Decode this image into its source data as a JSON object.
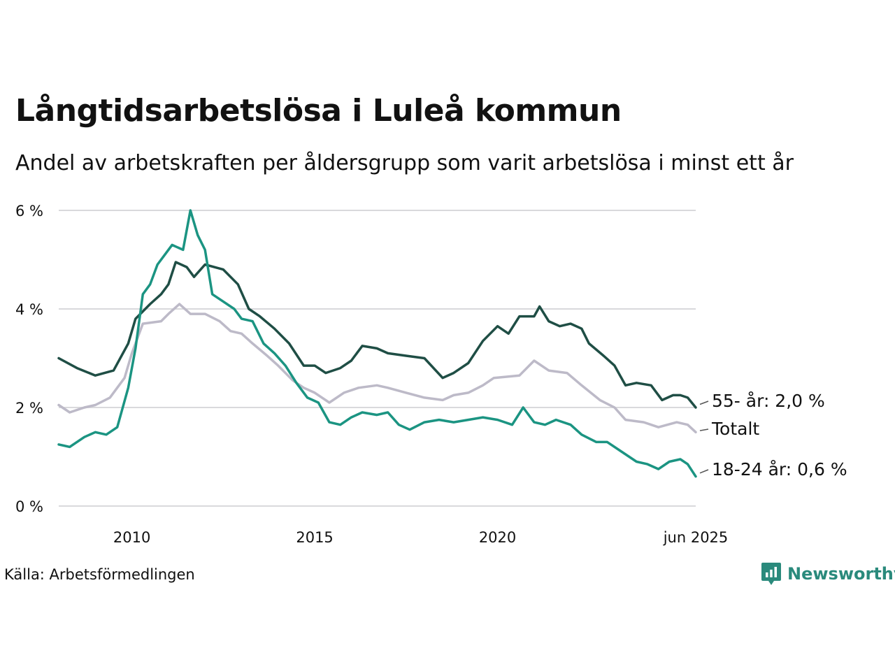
{
  "title": "Långtidsarbetslösa i Luleå kommun",
  "subtitle": "Andel av arbetskraften per åldersgrupp som varit arbetslösa i minst ett år",
  "source": "Källa: Arbetsförmedlingen",
  "brand": {
    "name": "Newsworthy",
    "icon": "newsworthy-logo-icon"
  },
  "colors": {
    "older": "#1f4e45",
    "total": "#bdbac8",
    "young": "#1b9482",
    "grid": "#d9d9dc",
    "brand": "#2a8a7c"
  },
  "chart_data": {
    "type": "line",
    "title": "Långtidsarbetslösa i Luleå kommun",
    "subtitle": "Andel av arbetskraften per åldersgrupp som varit arbetslösa i minst ett år",
    "xlabel": "",
    "ylabel": "",
    "xlim": [
      2008.0,
      2025.42
    ],
    "ylim": [
      0,
      6
    ],
    "grid": true,
    "x_ticks": [
      {
        "value": 2010,
        "label": "2010"
      },
      {
        "value": 2015,
        "label": "2015"
      },
      {
        "value": 2020,
        "label": "2020"
      },
      {
        "value": 2025.42,
        "label": "jun 2025"
      }
    ],
    "y_ticks": [
      {
        "value": 0,
        "label": "0 %"
      },
      {
        "value": 2,
        "label": "2 %"
      },
      {
        "value": 4,
        "label": "4 %"
      },
      {
        "value": 6,
        "label": "6 %"
      }
    ],
    "series": [
      {
        "name": "55- år",
        "end_label": "55- år: 2,0 %",
        "color": "#1f4e45",
        "points": [
          [
            2008.0,
            3.0
          ],
          [
            2008.5,
            2.8
          ],
          [
            2009.0,
            2.65
          ],
          [
            2009.5,
            2.75
          ],
          [
            2009.9,
            3.3
          ],
          [
            2010.1,
            3.8
          ],
          [
            2010.5,
            4.1
          ],
          [
            2010.8,
            4.3
          ],
          [
            2011.0,
            4.5
          ],
          [
            2011.2,
            4.95
          ],
          [
            2011.5,
            4.85
          ],
          [
            2011.7,
            4.65
          ],
          [
            2012.0,
            4.9
          ],
          [
            2012.5,
            4.8
          ],
          [
            2012.9,
            4.5
          ],
          [
            2013.2,
            4.0
          ],
          [
            2013.5,
            3.85
          ],
          [
            2013.9,
            3.6
          ],
          [
            2014.3,
            3.3
          ],
          [
            2014.7,
            2.85
          ],
          [
            2015.0,
            2.85
          ],
          [
            2015.3,
            2.7
          ],
          [
            2015.7,
            2.8
          ],
          [
            2016.0,
            2.95
          ],
          [
            2016.3,
            3.25
          ],
          [
            2016.7,
            3.2
          ],
          [
            2017.0,
            3.1
          ],
          [
            2017.5,
            3.05
          ],
          [
            2018.0,
            3.0
          ],
          [
            2018.5,
            2.6
          ],
          [
            2018.8,
            2.7
          ],
          [
            2019.2,
            2.9
          ],
          [
            2019.6,
            3.35
          ],
          [
            2020.0,
            3.65
          ],
          [
            2020.3,
            3.5
          ],
          [
            2020.6,
            3.85
          ],
          [
            2021.0,
            3.85
          ],
          [
            2021.15,
            4.05
          ],
          [
            2021.4,
            3.75
          ],
          [
            2021.7,
            3.65
          ],
          [
            2022.0,
            3.7
          ],
          [
            2022.3,
            3.6
          ],
          [
            2022.5,
            3.3
          ],
          [
            2022.9,
            3.05
          ],
          [
            2023.2,
            2.85
          ],
          [
            2023.5,
            2.45
          ],
          [
            2023.8,
            2.5
          ],
          [
            2024.2,
            2.45
          ],
          [
            2024.5,
            2.15
          ],
          [
            2024.8,
            2.25
          ],
          [
            2025.0,
            2.25
          ],
          [
            2025.2,
            2.2
          ],
          [
            2025.42,
            2.0
          ]
        ]
      },
      {
        "name": "Totalt",
        "end_label": "Totalt",
        "color": "#bdbac8",
        "points": [
          [
            2008.0,
            2.05
          ],
          [
            2008.3,
            1.9
          ],
          [
            2008.7,
            2.0
          ],
          [
            2009.0,
            2.05
          ],
          [
            2009.4,
            2.2
          ],
          [
            2009.8,
            2.6
          ],
          [
            2010.0,
            3.1
          ],
          [
            2010.3,
            3.7
          ],
          [
            2010.8,
            3.75
          ],
          [
            2011.0,
            3.9
          ],
          [
            2011.3,
            4.1
          ],
          [
            2011.6,
            3.9
          ],
          [
            2012.0,
            3.9
          ],
          [
            2012.4,
            3.75
          ],
          [
            2012.7,
            3.55
          ],
          [
            2013.0,
            3.5
          ],
          [
            2013.3,
            3.3
          ],
          [
            2013.7,
            3.05
          ],
          [
            2014.0,
            2.85
          ],
          [
            2014.4,
            2.55
          ],
          [
            2014.7,
            2.4
          ],
          [
            2015.0,
            2.3
          ],
          [
            2015.4,
            2.1
          ],
          [
            2015.8,
            2.3
          ],
          [
            2016.2,
            2.4
          ],
          [
            2016.7,
            2.45
          ],
          [
            2017.0,
            2.4
          ],
          [
            2017.5,
            2.3
          ],
          [
            2018.0,
            2.2
          ],
          [
            2018.5,
            2.15
          ],
          [
            2018.8,
            2.25
          ],
          [
            2019.2,
            2.3
          ],
          [
            2019.6,
            2.45
          ],
          [
            2019.9,
            2.6
          ],
          [
            2020.6,
            2.65
          ],
          [
            2021.0,
            2.95
          ],
          [
            2021.4,
            2.75
          ],
          [
            2021.9,
            2.7
          ],
          [
            2022.3,
            2.45
          ],
          [
            2022.8,
            2.15
          ],
          [
            2023.2,
            2.0
          ],
          [
            2023.5,
            1.75
          ],
          [
            2024.0,
            1.7
          ],
          [
            2024.4,
            1.6
          ],
          [
            2024.9,
            1.7
          ],
          [
            2025.2,
            1.65
          ],
          [
            2025.42,
            1.5
          ]
        ]
      },
      {
        "name": "18-24 år",
        "end_label": "18-24 år: 0,6 %",
        "color": "#1b9482",
        "points": [
          [
            2008.0,
            1.25
          ],
          [
            2008.3,
            1.2
          ],
          [
            2008.7,
            1.4
          ],
          [
            2009.0,
            1.5
          ],
          [
            2009.3,
            1.45
          ],
          [
            2009.6,
            1.6
          ],
          [
            2009.9,
            2.4
          ],
          [
            2010.1,
            3.2
          ],
          [
            2010.3,
            4.3
          ],
          [
            2010.5,
            4.5
          ],
          [
            2010.7,
            4.9
          ],
          [
            2010.9,
            5.1
          ],
          [
            2011.1,
            5.3
          ],
          [
            2011.4,
            5.2
          ],
          [
            2011.6,
            6.0
          ],
          [
            2011.8,
            5.5
          ],
          [
            2012.0,
            5.2
          ],
          [
            2012.2,
            4.3
          ],
          [
            2012.5,
            4.15
          ],
          [
            2012.8,
            4.0
          ],
          [
            2013.0,
            3.8
          ],
          [
            2013.3,
            3.75
          ],
          [
            2013.6,
            3.3
          ],
          [
            2013.9,
            3.1
          ],
          [
            2014.2,
            2.85
          ],
          [
            2014.5,
            2.5
          ],
          [
            2014.8,
            2.2
          ],
          [
            2015.1,
            2.1
          ],
          [
            2015.4,
            1.7
          ],
          [
            2015.7,
            1.65
          ],
          [
            2016.0,
            1.8
          ],
          [
            2016.3,
            1.9
          ],
          [
            2016.7,
            1.85
          ],
          [
            2017.0,
            1.9
          ],
          [
            2017.3,
            1.65
          ],
          [
            2017.6,
            1.55
          ],
          [
            2018.0,
            1.7
          ],
          [
            2018.4,
            1.75
          ],
          [
            2018.8,
            1.7
          ],
          [
            2019.2,
            1.75
          ],
          [
            2019.6,
            1.8
          ],
          [
            2020.0,
            1.75
          ],
          [
            2020.4,
            1.65
          ],
          [
            2020.7,
            2.0
          ],
          [
            2021.0,
            1.7
          ],
          [
            2021.3,
            1.65
          ],
          [
            2021.6,
            1.75
          ],
          [
            2022.0,
            1.65
          ],
          [
            2022.3,
            1.45
          ],
          [
            2022.7,
            1.3
          ],
          [
            2023.0,
            1.3
          ],
          [
            2023.4,
            1.1
          ],
          [
            2023.8,
            0.9
          ],
          [
            2024.1,
            0.85
          ],
          [
            2024.4,
            0.75
          ],
          [
            2024.7,
            0.9
          ],
          [
            2025.0,
            0.95
          ],
          [
            2025.2,
            0.85
          ],
          [
            2025.42,
            0.6
          ]
        ]
      }
    ]
  }
}
